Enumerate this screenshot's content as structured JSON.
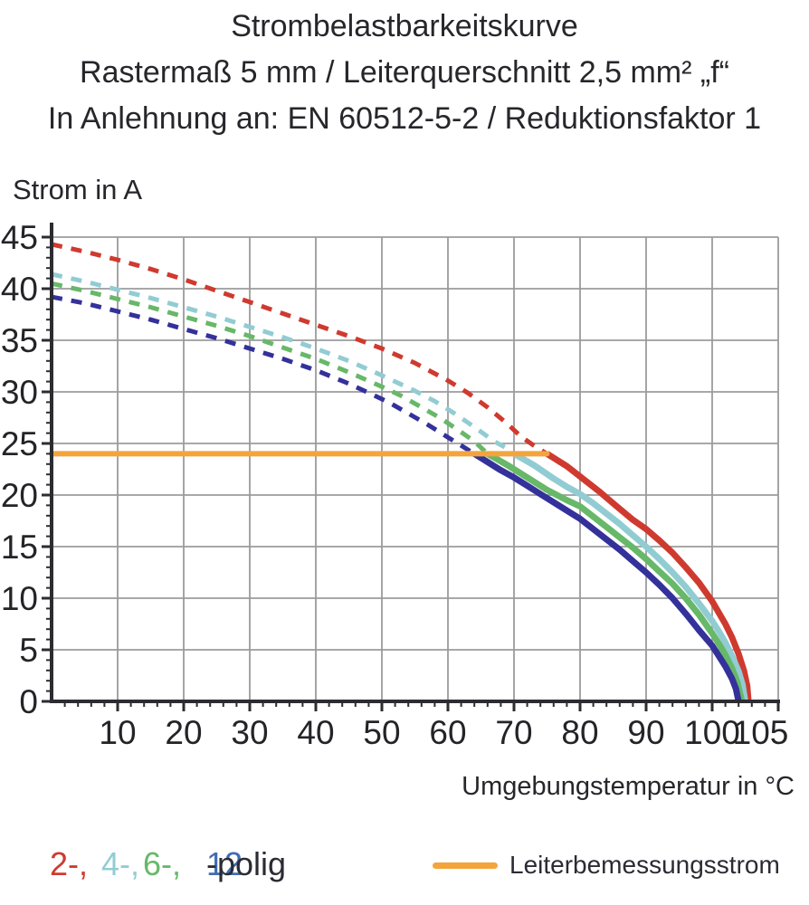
{
  "title": {
    "line1": "Strombelastbarkeitskurve",
    "line2": "Rastermaß 5 mm / Leiterquerschnitt 2,5 mm² „f“",
    "line3": "In Anlehnung an: EN 60512-5-2 / Reduktionsfaktor 1"
  },
  "chart_data": {
    "type": "line",
    "title": "Strombelastbarkeitskurve",
    "xlabel": "Umgebungstemperatur in °C",
    "ylabel": "Strom in A",
    "grid": true,
    "x_axis": {
      "min": 0,
      "max": 110,
      "grid_step": 10,
      "minor_tick_step": 2,
      "tick_labels": [
        10,
        20,
        30,
        40,
        50,
        60,
        70,
        80,
        90,
        100,
        105
      ]
    },
    "y_axis": {
      "min": 0,
      "max": 45,
      "grid_step": 5,
      "minor_tick_step": 1,
      "tick_labels": [
        0,
        5,
        10,
        15,
        20,
        25,
        30,
        35,
        40,
        45
      ]
    },
    "colors": {
      "grid": "#9b9b9b",
      "axis": "#2c2c31",
      "tick_text": "#242428"
    },
    "reference_line": {
      "label": "Leiterbemessungsstrom",
      "current_a": 24,
      "t_start": 0,
      "t_end": 75,
      "color": "#f3a43d"
    },
    "series": [
      {
        "name": "2-polig",
        "color": "#cf3a2f",
        "dashed_points": [
          [
            0,
            44.3
          ],
          [
            5,
            43.6
          ],
          [
            10,
            42.8
          ],
          [
            15,
            41.9
          ],
          [
            20,
            40.9
          ],
          [
            25,
            39.8
          ],
          [
            30,
            38.7
          ],
          [
            35,
            37.6
          ],
          [
            40,
            36.5
          ],
          [
            45,
            35.4
          ],
          [
            50,
            34.2
          ],
          [
            55,
            32.8
          ],
          [
            60,
            31.1
          ],
          [
            63,
            29.9
          ],
          [
            66,
            28.5
          ],
          [
            69,
            26.9
          ],
          [
            71,
            25.7
          ],
          [
            73,
            24.8
          ],
          [
            75,
            24.0
          ]
        ],
        "solid_points": [
          [
            75,
            24.0
          ],
          [
            78,
            22.8
          ],
          [
            80,
            21.8
          ],
          [
            83,
            20.3
          ],
          [
            85,
            19.2
          ],
          [
            88,
            17.6
          ],
          [
            90,
            16.7
          ],
          [
            92,
            15.6
          ],
          [
            94,
            14.4
          ],
          [
            96,
            13.0
          ],
          [
            98,
            11.5
          ],
          [
            100,
            9.7
          ],
          [
            101,
            8.6
          ],
          [
            102,
            7.5
          ],
          [
            103,
            6.2
          ],
          [
            104,
            4.6
          ],
          [
            104.8,
            3.0
          ],
          [
            105.3,
            1.5
          ],
          [
            105.5,
            0
          ]
        ]
      },
      {
        "name": "4-polig",
        "color": "#92ccd3",
        "dashed_points": [
          [
            0,
            41.4
          ],
          [
            5,
            40.7
          ],
          [
            10,
            39.9
          ],
          [
            15,
            39.1
          ],
          [
            20,
            38.2
          ],
          [
            25,
            37.3
          ],
          [
            30,
            36.3
          ],
          [
            35,
            35.3
          ],
          [
            40,
            34.2
          ],
          [
            45,
            33.0
          ],
          [
            50,
            31.6
          ],
          [
            55,
            30.1
          ],
          [
            58,
            29.1
          ],
          [
            61,
            27.9
          ],
          [
            64,
            26.6
          ],
          [
            67,
            25.2
          ],
          [
            69,
            24.5
          ],
          [
            70,
            24.0
          ]
        ],
        "solid_points": [
          [
            70,
            24.0
          ],
          [
            73,
            22.9
          ],
          [
            76,
            21.6
          ],
          [
            78,
            20.8
          ],
          [
            80,
            20.1
          ],
          [
            82,
            19.2
          ],
          [
            84,
            18.2
          ],
          [
            86,
            17.2
          ],
          [
            88,
            16.1
          ],
          [
            90,
            15.0
          ],
          [
            92,
            13.8
          ],
          [
            94,
            12.5
          ],
          [
            96,
            11.1
          ],
          [
            98,
            9.5
          ],
          [
            100,
            7.8
          ],
          [
            101,
            6.8
          ],
          [
            102,
            5.7
          ],
          [
            103,
            4.4
          ],
          [
            104,
            2.9
          ],
          [
            104.6,
            1.6
          ],
          [
            105,
            0
          ]
        ]
      },
      {
        "name": "6-polig",
        "color": "#67b869",
        "dashed_points": [
          [
            0,
            40.5
          ],
          [
            5,
            39.8
          ],
          [
            10,
            39.0
          ],
          [
            15,
            38.2
          ],
          [
            20,
            37.3
          ],
          [
            25,
            36.4
          ],
          [
            30,
            35.4
          ],
          [
            35,
            34.3
          ],
          [
            40,
            33.2
          ],
          [
            45,
            31.9
          ],
          [
            50,
            30.5
          ],
          [
            53,
            29.6
          ],
          [
            56,
            28.5
          ],
          [
            59,
            27.4
          ],
          [
            62,
            26.1
          ],
          [
            64,
            25.2
          ],
          [
            66,
            24.0
          ]
        ],
        "solid_points": [
          [
            66,
            24.0
          ],
          [
            69,
            22.9
          ],
          [
            72,
            21.7
          ],
          [
            75,
            20.5
          ],
          [
            78,
            19.5
          ],
          [
            80,
            18.9
          ],
          [
            82,
            17.9
          ],
          [
            84,
            16.9
          ],
          [
            86,
            15.9
          ],
          [
            88,
            14.9
          ],
          [
            90,
            13.8
          ],
          [
            92,
            12.6
          ],
          [
            94,
            11.4
          ],
          [
            96,
            10.0
          ],
          [
            98,
            8.4
          ],
          [
            100,
            6.6
          ],
          [
            101,
            5.6
          ],
          [
            102,
            4.5
          ],
          [
            103,
            3.2
          ],
          [
            103.8,
            1.9
          ],
          [
            104.5,
            0
          ]
        ]
      },
      {
        "name": "12-polig",
        "color": "#34319b",
        "dashed_points": [
          [
            0,
            39.2
          ],
          [
            5,
            38.6
          ],
          [
            10,
            37.8
          ],
          [
            15,
            37.0
          ],
          [
            20,
            36.1
          ],
          [
            25,
            35.2
          ],
          [
            30,
            34.2
          ],
          [
            35,
            33.2
          ],
          [
            40,
            32.1
          ],
          [
            45,
            30.8
          ],
          [
            48,
            29.9
          ],
          [
            51,
            29.0
          ],
          [
            54,
            27.9
          ],
          [
            57,
            26.8
          ],
          [
            60,
            25.6
          ],
          [
            62,
            24.8
          ],
          [
            64,
            24.0
          ]
        ],
        "solid_points": [
          [
            64,
            24.0
          ],
          [
            66,
            23.2
          ],
          [
            68,
            22.4
          ],
          [
            70,
            21.7
          ],
          [
            72,
            20.9
          ],
          [
            74,
            20.1
          ],
          [
            76,
            19.3
          ],
          [
            78,
            18.5
          ],
          [
            80,
            17.7
          ],
          [
            82,
            16.7
          ],
          [
            84,
            15.7
          ],
          [
            86,
            14.7
          ],
          [
            88,
            13.6
          ],
          [
            90,
            12.5
          ],
          [
            92,
            11.3
          ],
          [
            94,
            10.0
          ],
          [
            96,
            8.5
          ],
          [
            98,
            6.9
          ],
          [
            100,
            5.4
          ],
          [
            101,
            4.4
          ],
          [
            102,
            3.4
          ],
          [
            103,
            2.2
          ],
          [
            103.6,
            1.2
          ],
          [
            104,
            0
          ]
        ]
      }
    ]
  },
  "legend": {
    "pole_items": [
      {
        "label": "2-,",
        "color": "#cf3a2f"
      },
      {
        "label": "4-,",
        "color": "#92ccd3"
      },
      {
        "label": "6-,",
        "color": "#67b869"
      },
      {
        "label": "12",
        "color": "#3f6cb3"
      }
    ],
    "pole_suffix": "-polig",
    "suffix_color": "#2b2b33",
    "rated": {
      "label": "Leiterbemessungsstrom",
      "color": "#f3a43d"
    }
  }
}
